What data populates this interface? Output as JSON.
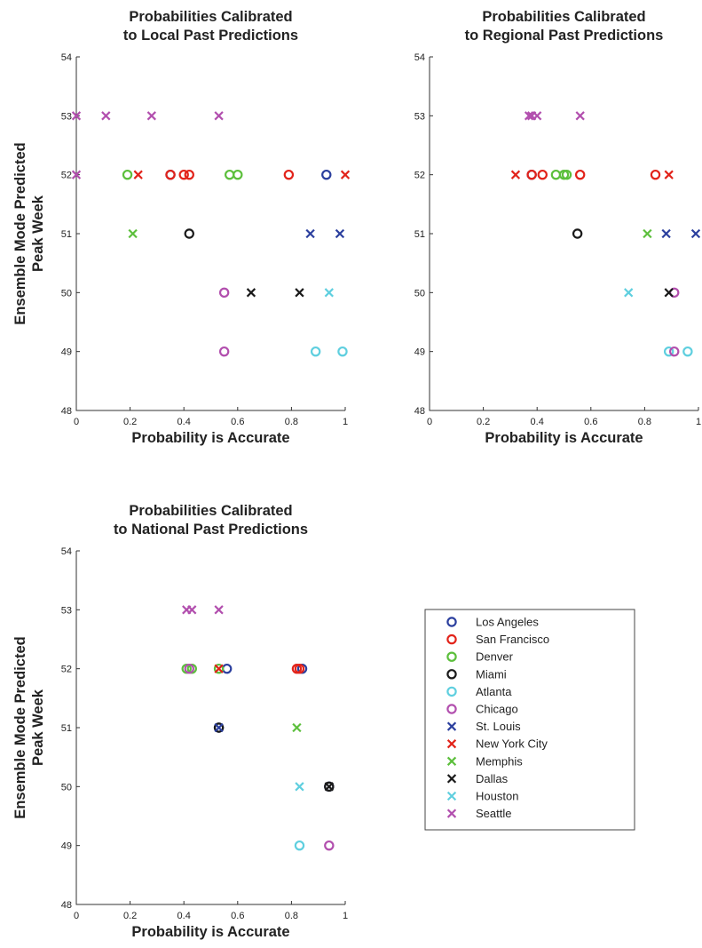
{
  "legend": {
    "entries": [
      {
        "name": "Los Angeles",
        "marker": "circle",
        "color": "#2b3f9e"
      },
      {
        "name": "San Francisco",
        "marker": "circle",
        "color": "#e2231a"
      },
      {
        "name": "Denver",
        "marker": "circle",
        "color": "#5cbf3c"
      },
      {
        "name": "Miami",
        "marker": "circle",
        "color": "#1a1a1a"
      },
      {
        "name": "Atlanta",
        "marker": "circle",
        "color": "#5fcfdf"
      },
      {
        "name": "Chicago",
        "marker": "circle",
        "color": "#b24fae"
      },
      {
        "name": "St. Louis",
        "marker": "x",
        "color": "#2b3f9e"
      },
      {
        "name": "New York City",
        "marker": "x",
        "color": "#e2231a"
      },
      {
        "name": "Memphis",
        "marker": "x",
        "color": "#5cbf3c"
      },
      {
        "name": "Dallas",
        "marker": "x",
        "color": "#1a1a1a"
      },
      {
        "name": "Houston",
        "marker": "x",
        "color": "#5fcfdf"
      },
      {
        "name": "Seattle",
        "marker": "x",
        "color": "#b24fae"
      }
    ]
  },
  "chart_data": [
    {
      "type": "scatter",
      "title": [
        "Probabilities Calibrated",
        "to Local Past Predictions"
      ],
      "xlabel": "Probability is Accurate",
      "ylabel": [
        "Ensemble Mode Predicted",
        "Peak Week"
      ],
      "xlim": [
        0,
        1
      ],
      "ylim": [
        48,
        54
      ],
      "xticks": [
        "0",
        "0.2",
        "0.4",
        "0.6",
        "0.8",
        "1"
      ],
      "yticks": [
        "48",
        "49",
        "50",
        "51",
        "52",
        "53",
        "54"
      ],
      "series": [
        {
          "name": "Los Angeles",
          "points": [
            [
              0.35,
              52
            ],
            [
              0.93,
              52
            ]
          ]
        },
        {
          "name": "San Francisco",
          "points": [
            [
              0.35,
              52
            ],
            [
              0.4,
              52
            ],
            [
              0.42,
              52
            ],
            [
              0.79,
              52
            ]
          ]
        },
        {
          "name": "Denver",
          "points": [
            [
              0.19,
              52
            ],
            [
              0.57,
              52
            ],
            [
              0.6,
              52
            ]
          ]
        },
        {
          "name": "Miami",
          "points": [
            [
              0.42,
              51
            ]
          ]
        },
        {
          "name": "Atlanta",
          "points": [
            [
              0.89,
              49
            ],
            [
              0.99,
              49
            ]
          ]
        },
        {
          "name": "Chicago",
          "points": [
            [
              0.55,
              50
            ],
            [
              0.55,
              49
            ]
          ]
        },
        {
          "name": "St. Louis",
          "points": [
            [
              0.87,
              51
            ],
            [
              0.98,
              51
            ]
          ]
        },
        {
          "name": "New York City",
          "points": [
            [
              0.23,
              52
            ],
            [
              1.0,
              52
            ]
          ]
        },
        {
          "name": "Memphis",
          "points": [
            [
              0.21,
              51
            ]
          ]
        },
        {
          "name": "Dallas",
          "points": [
            [
              0.65,
              50
            ],
            [
              0.83,
              50
            ]
          ]
        },
        {
          "name": "Houston",
          "points": [
            [
              0.94,
              50
            ]
          ]
        },
        {
          "name": "Seattle",
          "points": [
            [
              0.0,
              53
            ],
            [
              0.11,
              53
            ],
            [
              0.28,
              53
            ],
            [
              0.53,
              53
            ],
            [
              0.0,
              52
            ]
          ]
        }
      ]
    },
    {
      "type": "scatter",
      "title": [
        "Probabilities Calibrated",
        "to Regional Past Predictions"
      ],
      "xlabel": "Probability is Accurate",
      "ylabel": [],
      "xlim": [
        0,
        1
      ],
      "ylim": [
        48,
        54
      ],
      "xticks": [
        "0",
        "0.2",
        "0.4",
        "0.6",
        "0.8",
        "1"
      ],
      "yticks": [
        "48",
        "49",
        "50",
        "51",
        "52",
        "53",
        "54"
      ],
      "series": [
        {
          "name": "Los Angeles",
          "points": [
            [
              0.38,
              52
            ]
          ]
        },
        {
          "name": "San Francisco",
          "points": [
            [
              0.38,
              52
            ],
            [
              0.42,
              52
            ],
            [
              0.56,
              52
            ],
            [
              0.84,
              52
            ]
          ]
        },
        {
          "name": "Denver",
          "points": [
            [
              0.47,
              52
            ],
            [
              0.5,
              52
            ],
            [
              0.51,
              52
            ]
          ]
        },
        {
          "name": "Miami",
          "points": [
            [
              0.55,
              51
            ]
          ]
        },
        {
          "name": "Atlanta",
          "points": [
            [
              0.89,
              49
            ],
            [
              0.96,
              49
            ]
          ]
        },
        {
          "name": "Chicago",
          "points": [
            [
              0.91,
              50
            ],
            [
              0.91,
              49
            ]
          ]
        },
        {
          "name": "St. Louis",
          "points": [
            [
              0.88,
              51
            ],
            [
              0.99,
              51
            ]
          ]
        },
        {
          "name": "New York City",
          "points": [
            [
              0.32,
              52
            ],
            [
              0.89,
              52
            ]
          ]
        },
        {
          "name": "Memphis",
          "points": [
            [
              0.81,
              51
            ]
          ]
        },
        {
          "name": "Dallas",
          "points": [
            [
              0.89,
              50
            ]
          ]
        },
        {
          "name": "Houston",
          "points": [
            [
              0.74,
              50
            ]
          ]
        },
        {
          "name": "Seattle",
          "points": [
            [
              0.37,
              53
            ],
            [
              0.38,
              53
            ],
            [
              0.4,
              53
            ],
            [
              0.56,
              53
            ]
          ]
        }
      ]
    },
    {
      "type": "scatter",
      "title": [
        "Probabilities Calibrated",
        "to National Past Predictions"
      ],
      "xlabel": "Probability is Accurate",
      "ylabel": [
        "Ensemble Mode Predicted",
        "Peak Week"
      ],
      "xlim": [
        0,
        1
      ],
      "ylim": [
        48,
        54
      ],
      "xticks": [
        "0",
        "0.2",
        "0.4",
        "0.6",
        "0.8",
        "1"
      ],
      "yticks": [
        "48",
        "49",
        "50",
        "51",
        "52",
        "53",
        "54"
      ],
      "series": [
        {
          "name": "Los Angeles",
          "points": [
            [
              0.56,
              52
            ],
            [
              0.84,
              52
            ],
            [
              0.53,
              51
            ],
            [
              0.94,
              50
            ]
          ]
        },
        {
          "name": "San Francisco",
          "points": [
            [
              0.82,
              52
            ],
            [
              0.83,
              52
            ]
          ]
        },
        {
          "name": "Denver",
          "points": [
            [
              0.41,
              52
            ],
            [
              0.43,
              52
            ],
            [
              0.53,
              52
            ]
          ]
        },
        {
          "name": "Miami",
          "points": [
            [
              0.53,
              51
            ],
            [
              0.94,
              50
            ]
          ]
        },
        {
          "name": "Atlanta",
          "points": [
            [
              0.83,
              49
            ]
          ]
        },
        {
          "name": "Chicago",
          "points": [
            [
              0.42,
              52
            ],
            [
              0.94,
              49
            ]
          ]
        },
        {
          "name": "St. Louis",
          "points": [
            [
              0.53,
              51
            ]
          ]
        },
        {
          "name": "New York City",
          "points": [
            [
              0.53,
              52
            ]
          ]
        },
        {
          "name": "Memphis",
          "points": [
            [
              0.82,
              51
            ]
          ]
        },
        {
          "name": "Dallas",
          "points": [
            [
              0.94,
              50
            ]
          ]
        },
        {
          "name": "Houston",
          "points": [
            [
              0.83,
              50
            ]
          ]
        },
        {
          "name": "Seattle",
          "points": [
            [
              0.41,
              53
            ],
            [
              0.43,
              53
            ],
            [
              0.53,
              53
            ]
          ]
        }
      ]
    }
  ]
}
